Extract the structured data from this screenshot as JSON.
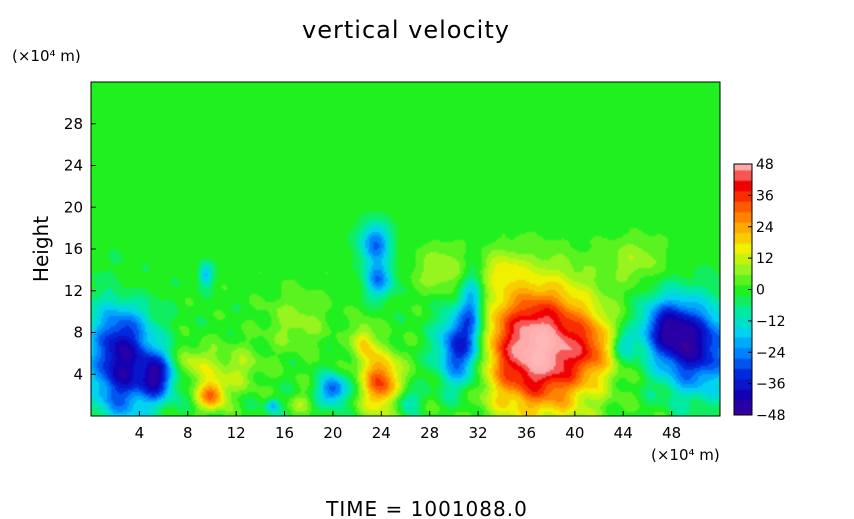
{
  "chart_data": {
    "type": "heatmap",
    "title": "vertical velocity",
    "xlabel": "",
    "ylabel": "Height",
    "x_unit": "(×10⁴ m)",
    "y_unit": "(×10⁴ m)",
    "footer": "TIME  =  1001088.0",
    "xlim": [
      0,
      52
    ],
    "ylim": [
      0,
      32
    ],
    "x_ticks": [
      4,
      8,
      12,
      16,
      20,
      24,
      28,
      32,
      36,
      40,
      44,
      48
    ],
    "x_tick_labels": [
      "4",
      "8",
      "12",
      "16",
      "20",
      "24",
      "28",
      "32",
      "36",
      "40",
      "44",
      "48"
    ],
    "y_ticks": [
      4,
      8,
      12,
      16,
      20,
      24,
      28
    ],
    "y_tick_labels": [
      "4",
      "8",
      "12",
      "16",
      "20",
      "24",
      "28"
    ],
    "colorbar": {
      "ticks": [
        48,
        36,
        24,
        12,
        0,
        -12,
        -24,
        -36,
        -48
      ],
      "tick_labels": [
        "48",
        "36",
        "24",
        "12",
        "0",
        "−12",
        "−24",
        "−36",
        "−48"
      ],
      "range": [
        -48,
        48
      ]
    },
    "background_value": 0,
    "features": [
      {
        "x": 37,
        "y": 6.5,
        "sx": 3.2,
        "sy": 4.2,
        "value": 55
      },
      {
        "x": 24,
        "y": 3.2,
        "sx": 1.1,
        "sy": 2.0,
        "value": 34
      },
      {
        "x": 10,
        "y": 2.0,
        "sx": 0.8,
        "sy": 1.0,
        "value": 30
      },
      {
        "x": 22.5,
        "y": 7.0,
        "sx": 0.6,
        "sy": 1.3,
        "value": 18
      },
      {
        "x": 41.5,
        "y": 6.5,
        "sx": 1.2,
        "sy": 2.0,
        "value": 14
      },
      {
        "x": 2.5,
        "y": 5.5,
        "sx": 1.8,
        "sy": 4.0,
        "value": -42
      },
      {
        "x": 5.5,
        "y": 3.8,
        "sx": 1.0,
        "sy": 1.6,
        "value": -34
      },
      {
        "x": 50,
        "y": 6.5,
        "sx": 2.2,
        "sy": 3.0,
        "value": -38
      },
      {
        "x": 47.5,
        "y": 8.5,
        "sx": 1.5,
        "sy": 2.0,
        "value": -28
      },
      {
        "x": 30.5,
        "y": 6.5,
        "sx": 1.3,
        "sy": 2.6,
        "value": -38
      },
      {
        "x": 31.5,
        "y": 10.5,
        "sx": 0.7,
        "sy": 2.5,
        "value": -22
      },
      {
        "x": 23.5,
        "y": 16.5,
        "sx": 0.9,
        "sy": 1.4,
        "value": -26
      },
      {
        "x": 23.8,
        "y": 13.0,
        "sx": 0.8,
        "sy": 1.2,
        "value": -24
      },
      {
        "x": 20.0,
        "y": 2.5,
        "sx": 0.8,
        "sy": 1.0,
        "value": -30
      },
      {
        "x": 9.5,
        "y": 13.5,
        "sx": 0.4,
        "sy": 0.8,
        "value": -18
      },
      {
        "x": 15.0,
        "y": 1.0,
        "sx": 0.4,
        "sy": 0.5,
        "value": -20
      },
      {
        "x": 44.0,
        "y": 6.8,
        "sx": 0.7,
        "sy": 1.0,
        "value": -16
      },
      {
        "x": 8.5,
        "y": 5.0,
        "sx": 1.2,
        "sy": 1.2,
        "value": 12
      },
      {
        "x": 12.0,
        "y": 4.5,
        "sx": 1.5,
        "sy": 1.5,
        "value": 10
      },
      {
        "x": 29.0,
        "y": 14.0,
        "sx": 1.5,
        "sy": 1.6,
        "value": 10
      },
      {
        "x": 17.0,
        "y": 9.0,
        "sx": 1.8,
        "sy": 2.0,
        "value": 8
      },
      {
        "x": 45.0,
        "y": 15.0,
        "sx": 1.6,
        "sy": 1.5,
        "value": 9
      },
      {
        "x": 3.0,
        "y": 12.0,
        "sx": 1.3,
        "sy": 1.6,
        "value": 8
      },
      {
        "x": 34.0,
        "y": 14.0,
        "sx": 1.2,
        "sy": 1.2,
        "value": 10
      },
      {
        "x": 26.0,
        "y": 1.5,
        "sx": 0.8,
        "sy": 0.8,
        "value": -14
      },
      {
        "x": 17.5,
        "y": 1.3,
        "sx": 0.7,
        "sy": 0.6,
        "value": 8
      }
    ]
  }
}
